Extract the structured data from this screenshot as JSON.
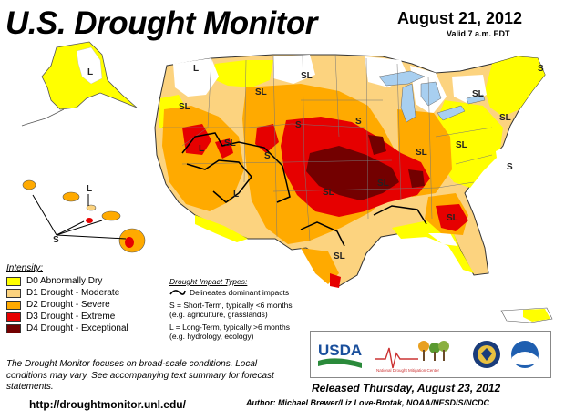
{
  "header": {
    "title": "U.S. Drought Monitor",
    "date": "August 21, 2012",
    "valid_time": "Valid 7 a.m. EDT"
  },
  "colors": {
    "d0": "#ffff00",
    "d1": "#fcd37f",
    "d2": "#ffaa00",
    "d3": "#e60000",
    "d4": "#730000",
    "water": "#a8cff0",
    "land": "#ffffff"
  },
  "legend": {
    "title": "Intensity:",
    "items": [
      {
        "label": "D0 Abnormally Dry",
        "color": "#ffff00"
      },
      {
        "label": "D1 Drought - Moderate",
        "color": "#fcd37f"
      },
      {
        "label": "D2 Drought - Severe",
        "color": "#ffaa00"
      },
      {
        "label": "D3 Drought - Extreme",
        "color": "#e60000"
      },
      {
        "label": "D4 Drought - Exceptional",
        "color": "#730000"
      }
    ]
  },
  "impact": {
    "title": "Drought Impact Types:",
    "line_label": "Delineates dominant impacts",
    "short_term": "S = Short-Term, typically <6 months",
    "short_examples": "(e.g. agriculture, grasslands)",
    "long_term": "L = Long-Term, typically >6 months",
    "long_examples": "(e.g. hydrology, ecology)"
  },
  "note": "The Drought Monitor focuses on broad-scale conditions. Local conditions may vary. See accompanying text summary for forecast statements.",
  "url": "http://droughtmonitor.unl.edu/",
  "released": "Released Thursday, August 23, 2012",
  "author": "Author: Michael Brewer/Liz Love-Brotak, NOAA/NESDIS/NCDC",
  "logos": {
    "usda": "USDA",
    "ndmc": "National Drought Mitigation Center",
    "noaa": "noaa"
  },
  "map_labels": {
    "sl": "SL",
    "l": "L",
    "s": "S"
  }
}
